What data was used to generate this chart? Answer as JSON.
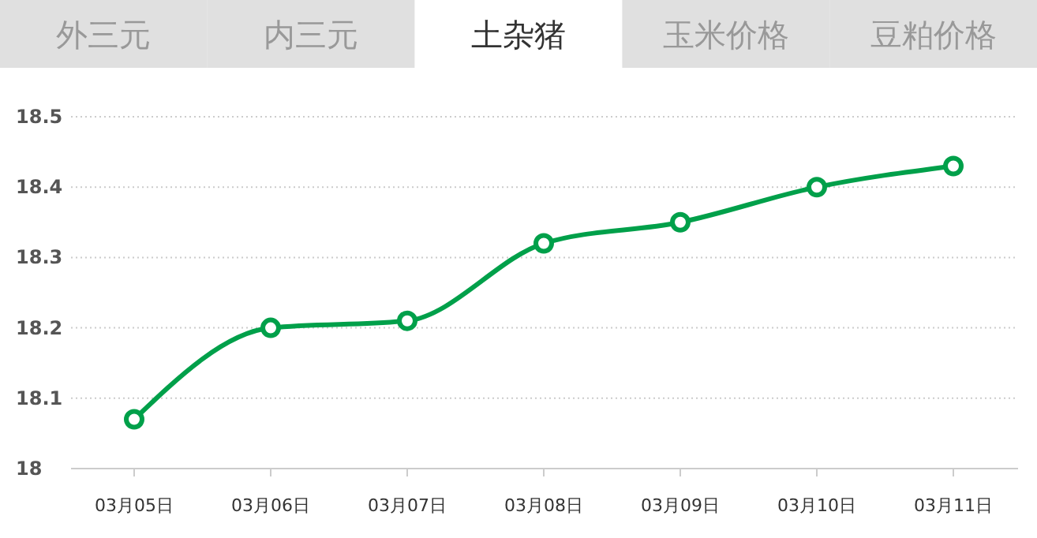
{
  "chart_data": {
    "type": "line",
    "annotations": [
      "外三元",
      "内三元",
      "土杂猪",
      "玉米价格",
      "豆粕价格"
    ],
    "categories": [
      "03月05日",
      "03月06日",
      "03月07日",
      "03月08日",
      "03月09日",
      "03月10日",
      "03月11日"
    ],
    "series": [
      {
        "color": "#00a04a",
        "values": [
          18.07,
          18.2,
          18.21,
          18.32,
          18.35,
          18.4,
          18.43
        ]
      }
    ],
    "ylim": [
      18,
      18.5
    ],
    "yticks": [
      18,
      18.1,
      18.2,
      18.3,
      18.4,
      18.5
    ],
    "grid": "y",
    "marker": "circle",
    "line_style": "solid"
  }
}
